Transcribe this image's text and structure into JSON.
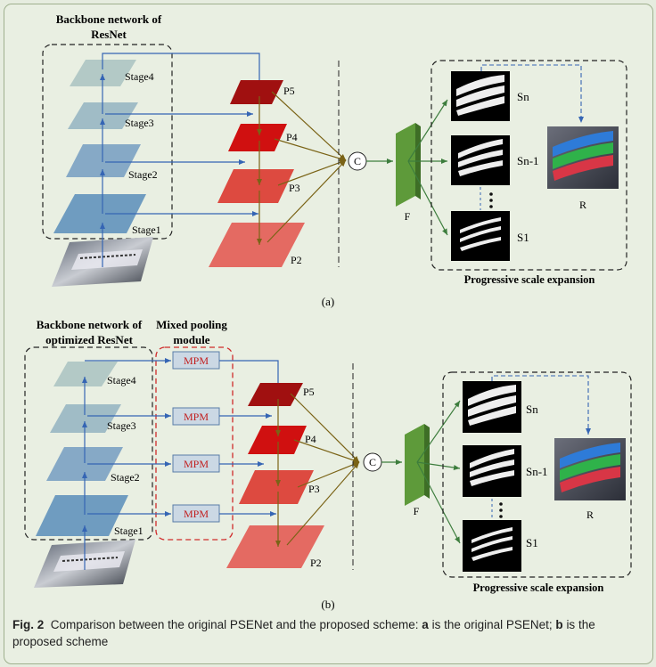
{
  "panel_a": {
    "backbone_title_line1": "Backbone network of",
    "backbone_title_line2": "ResNet",
    "stages": [
      "Stage4",
      "Stage3",
      "Stage2",
      "Stage1"
    ],
    "features": [
      "P5",
      "P4",
      "P3",
      "P2"
    ],
    "concat": "C",
    "fused": "F",
    "maps": [
      "Sn",
      "Sn-1",
      "S1"
    ],
    "result": "R",
    "expansion_label": "Progressive scale expansion",
    "label": "(a)"
  },
  "panel_b": {
    "backbone_title_line1": "Backbone network of",
    "backbone_title_line2": "optimized ResNet",
    "pool_title_line1": "Mixed pooling",
    "pool_title_line2": "module",
    "mpm": [
      "MPM",
      "MPM",
      "MPM",
      "MPM"
    ],
    "stages": [
      "Stage4",
      "Stage3",
      "Stage2",
      "Stage1"
    ],
    "features": [
      "P5",
      "P4",
      "P3",
      "P2"
    ],
    "concat": "C",
    "fused": "F",
    "maps": [
      "Sn",
      "Sn-1",
      "S1"
    ],
    "result": "R",
    "expansion_label": "Progressive scale expansion",
    "label": "(b)"
  },
  "caption": {
    "fig": "Fig. 2",
    "part1": "Comparison between the original PSENet and the proposed scheme:",
    "a": "a",
    "part2": "is the original PSENet;",
    "b": "b",
    "part3": "is the proposed scheme"
  },
  "colors": {
    "background": "#e9efe2",
    "stage": "#6f9cc0",
    "p5": "#a01010",
    "p4": "#d01010",
    "p3": "#dd4a40",
    "p2": "#e46a62",
    "arrow_blue": "#3565b4",
    "arrow_olive": "#7a6316",
    "fused": "#5e9a3a",
    "mpm_border": "#d02a2a"
  }
}
